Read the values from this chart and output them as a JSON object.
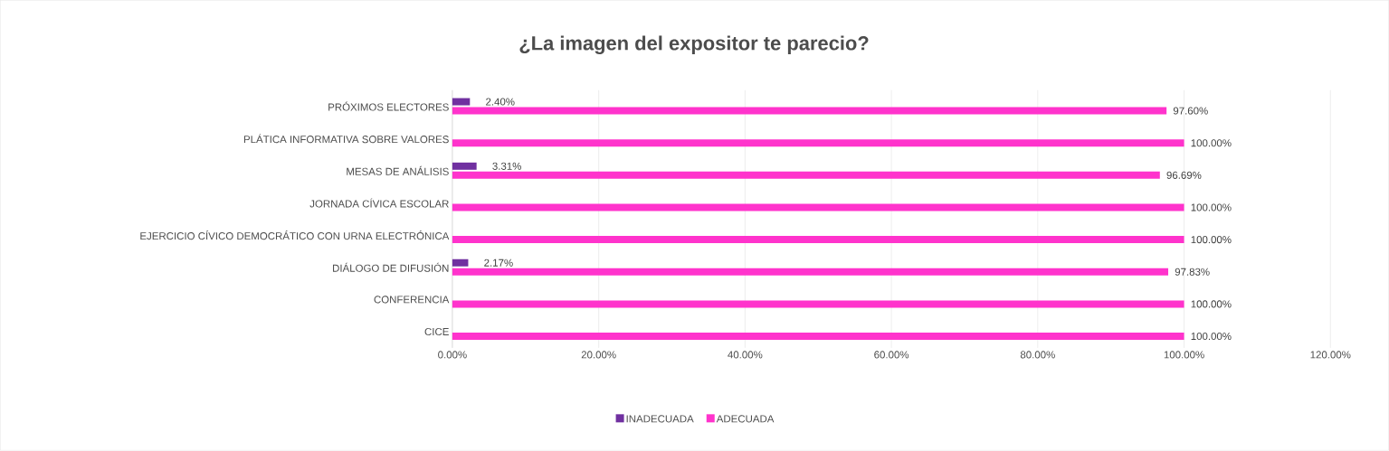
{
  "chart_data": {
    "type": "bar",
    "orientation": "horizontal",
    "title": "¿La imagen del expositor te parecio?",
    "categories": [
      "PRÓXIMOS ELECTORES",
      "PLÁTICA INFORMATIVA SOBRE VALORES",
      "MESAS DE ANÁLISIS",
      "JORNADA CÍVICA ESCOLAR",
      "EJERCICIO CÍVICO DEMOCRÁTICO CON URNA ELECTRÓNICA",
      "DIÁLOGO DE DIFUSIÓN",
      "CONFERENCIA",
      "CICE"
    ],
    "series": [
      {
        "name": "INADECUADA",
        "color": "#7030a0",
        "values": [
          2.4,
          0,
          3.31,
          0,
          0,
          2.17,
          0,
          0
        ],
        "value_labels": [
          "2.40%",
          null,
          "3.31%",
          null,
          null,
          "2.17%",
          null,
          null
        ]
      },
      {
        "name": "ADECUADA",
        "color": "#ff33cc",
        "values": [
          97.6,
          100,
          96.69,
          100,
          100,
          97.83,
          100,
          100
        ],
        "value_labels": [
          "97.60%",
          "100.00%",
          "96.69%",
          "100.00%",
          "100.00%",
          "97.83%",
          "100.00%",
          "100.00%"
        ]
      }
    ],
    "xlim": [
      0,
      120
    ],
    "xticks": [
      {
        "value": 0,
        "label": "0.00%"
      },
      {
        "value": 20,
        "label": "20.00%"
      },
      {
        "value": 40,
        "label": "40.00%"
      },
      {
        "value": 60,
        "label": "60.00%"
      },
      {
        "value": 80,
        "label": "80.00%"
      },
      {
        "value": 100,
        "label": "100.00%"
      },
      {
        "value": 120,
        "label": "120.00%"
      }
    ],
    "grid": "x",
    "legend": "bottom"
  }
}
